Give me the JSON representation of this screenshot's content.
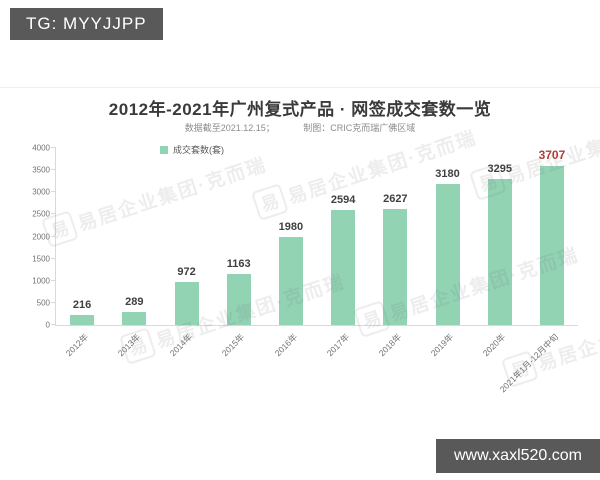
{
  "overlays": {
    "top_left_badge": "TG: MYYJJPP",
    "bottom_right_badge": "www.xaxl520.com",
    "badge_bg_color": "#595959"
  },
  "chart_data": {
    "type": "bar",
    "title": "2012年-2021年广州复式产品 · 网签成交套数一览",
    "notes": {
      "data_as_of": "数据截至2021.12.15；",
      "credit": "制图：CRIC克而瑞广佛区域"
    },
    "legend": {
      "label": "成交套数(套)",
      "position": "top-left"
    },
    "categories": [
      "2012年",
      "2013年",
      "2014年",
      "2015年",
      "2016年",
      "2017年",
      "2018年",
      "2019年",
      "2020年",
      "2021年1月-12月中旬"
    ],
    "values": [
      216,
      289,
      972,
      1163,
      1980,
      2594,
      2627,
      3180,
      3295,
      3707
    ],
    "xlabel": "",
    "ylabel": "",
    "ylim": [
      0,
      4000
    ],
    "ytick_step": 500,
    "grid": false,
    "highlight_last_value": true,
    "colors": {
      "bar": "#92d3b4",
      "value_label": "#404040",
      "highlight_value_label": "#b23c3c",
      "axis_line": "#d9d9d9",
      "axis_text": "#737373"
    },
    "watermark": {
      "logo_char": "易",
      "text": "易居企业集团·克而瑞"
    }
  }
}
